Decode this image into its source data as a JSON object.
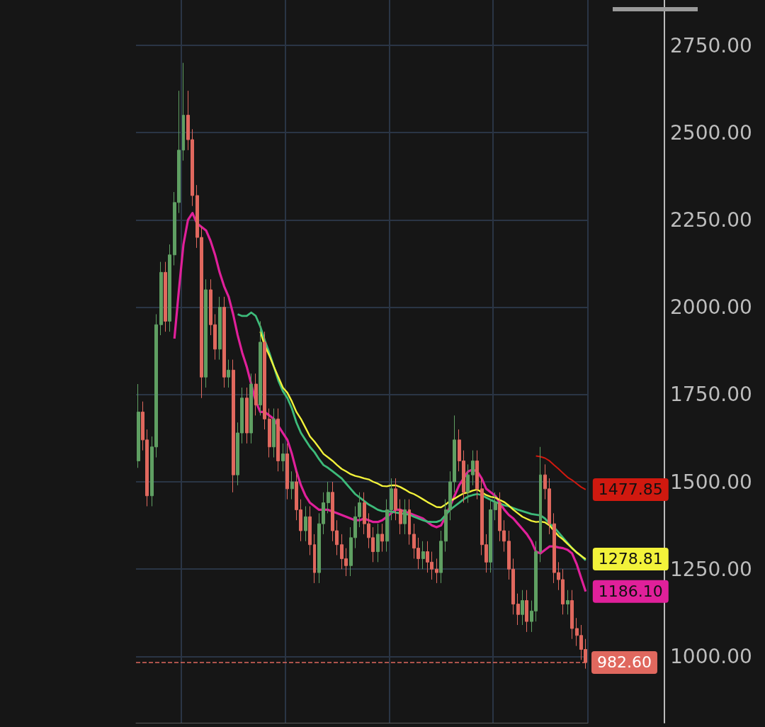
{
  "chart_data": {
    "type": "candlestick",
    "categories": [
      null,
      null,
      null,
      null,
      null,
      null,
      null,
      null,
      null,
      null,
      null,
      null,
      null,
      null,
      null,
      null,
      null,
      null,
      null,
      null,
      null,
      null,
      null,
      null,
      null,
      null,
      null,
      null,
      null,
      null,
      null,
      null,
      null,
      null,
      null,
      null,
      null,
      null,
      null,
      null,
      null,
      null,
      null,
      null,
      null,
      null,
      null,
      null,
      null,
      null,
      null,
      null,
      null,
      null,
      null,
      null,
      null,
      null,
      null,
      null,
      null,
      null,
      null,
      null,
      null,
      null,
      null,
      null,
      null,
      null,
      null,
      null,
      null,
      null,
      null,
      null,
      null,
      null,
      null,
      null,
      null,
      null,
      null,
      null,
      null,
      null,
      null,
      null,
      null,
      null,
      null,
      null,
      null,
      null,
      null,
      null,
      null,
      null,
      null,
      null
    ],
    "ohlc": [
      [
        1560,
        1780,
        1540,
        1700
      ],
      [
        1700,
        1730,
        1590,
        1620
      ],
      [
        1620,
        1650,
        1430,
        1460
      ],
      [
        1460,
        1630,
        1430,
        1600
      ],
      [
        1600,
        1980,
        1570,
        1950
      ],
      [
        1950,
        2130,
        1920,
        2100
      ],
      [
        2100,
        2130,
        1930,
        1960
      ],
      [
        1960,
        2180,
        1930,
        2150
      ],
      [
        2150,
        2330,
        2120,
        2300
      ],
      [
        2300,
        2620,
        2270,
        2450
      ],
      [
        2450,
        2700,
        2420,
        2550
      ],
      [
        2550,
        2620,
        2450,
        2480
      ],
      [
        2480,
        2510,
        2290,
        2320
      ],
      [
        2320,
        2350,
        2170,
        2200
      ],
      [
        2200,
        2230,
        1740,
        1800
      ],
      [
        1800,
        2080,
        1770,
        2050
      ],
      [
        2050,
        2080,
        1920,
        1950
      ],
      [
        1950,
        1980,
        1850,
        1880
      ],
      [
        1880,
        2030,
        1850,
        2000
      ],
      [
        2000,
        2030,
        1770,
        1800
      ],
      [
        1800,
        1850,
        1770,
        1820
      ],
      [
        1820,
        1850,
        1470,
        1520
      ],
      [
        1520,
        1670,
        1490,
        1640
      ],
      [
        1640,
        1770,
        1610,
        1740
      ],
      [
        1740,
        1770,
        1610,
        1640
      ],
      [
        1640,
        1810,
        1610,
        1780
      ],
      [
        1780,
        1810,
        1690,
        1720
      ],
      [
        1720,
        1960,
        1690,
        1900
      ],
      [
        1900,
        1930,
        1650,
        1680
      ],
      [
        1680,
        1710,
        1570,
        1600
      ],
      [
        1600,
        1710,
        1570,
        1680
      ],
      [
        1680,
        1710,
        1530,
        1560
      ],
      [
        1560,
        1610,
        1530,
        1580
      ],
      [
        1580,
        1610,
        1450,
        1480
      ],
      [
        1480,
        1530,
        1450,
        1500
      ],
      [
        1500,
        1530,
        1390,
        1420
      ],
      [
        1420,
        1450,
        1330,
        1360
      ],
      [
        1360,
        1430,
        1330,
        1400
      ],
      [
        1400,
        1430,
        1290,
        1320
      ],
      [
        1320,
        1350,
        1210,
        1240
      ],
      [
        1240,
        1410,
        1210,
        1380
      ],
      [
        1380,
        1470,
        1350,
        1440
      ],
      [
        1440,
        1500,
        1410,
        1470
      ],
      [
        1470,
        1500,
        1330,
        1360
      ],
      [
        1360,
        1390,
        1290,
        1320
      ],
      [
        1320,
        1350,
        1250,
        1280
      ],
      [
        1280,
        1310,
        1230,
        1260
      ],
      [
        1260,
        1370,
        1230,
        1340
      ],
      [
        1340,
        1430,
        1310,
        1400
      ],
      [
        1400,
        1470,
        1370,
        1440
      ],
      [
        1440,
        1470,
        1350,
        1380
      ],
      [
        1380,
        1410,
        1310,
        1340
      ],
      [
        1340,
        1370,
        1270,
        1300
      ],
      [
        1300,
        1380,
        1270,
        1350
      ],
      [
        1350,
        1380,
        1300,
        1330
      ],
      [
        1330,
        1450,
        1300,
        1420
      ],
      [
        1420,
        1510,
        1390,
        1480
      ],
      [
        1480,
        1510,
        1390,
        1420
      ],
      [
        1420,
        1450,
        1350,
        1380
      ],
      [
        1380,
        1450,
        1350,
        1420
      ],
      [
        1420,
        1450,
        1320,
        1350
      ],
      [
        1350,
        1380,
        1280,
        1310
      ],
      [
        1310,
        1340,
        1250,
        1280
      ],
      [
        1280,
        1330,
        1250,
        1300
      ],
      [
        1300,
        1330,
        1240,
        1270
      ],
      [
        1270,
        1300,
        1220,
        1250
      ],
      [
        1250,
        1280,
        1210,
        1240
      ],
      [
        1240,
        1360,
        1210,
        1330
      ],
      [
        1330,
        1450,
        1300,
        1420
      ],
      [
        1420,
        1530,
        1390,
        1500
      ],
      [
        1500,
        1690,
        1470,
        1620
      ],
      [
        1620,
        1650,
        1530,
        1560
      ],
      [
        1560,
        1590,
        1440,
        1470
      ],
      [
        1470,
        1550,
        1440,
        1520
      ],
      [
        1520,
        1590,
        1490,
        1560
      ],
      [
        1560,
        1590,
        1450,
        1480
      ],
      [
        1480,
        1510,
        1290,
        1320
      ],
      [
        1320,
        1350,
        1240,
        1270
      ],
      [
        1270,
        1450,
        1240,
        1420
      ],
      [
        1420,
        1470,
        1390,
        1440
      ],
      [
        1440,
        1470,
        1330,
        1360
      ],
      [
        1360,
        1390,
        1300,
        1330
      ],
      [
        1330,
        1360,
        1220,
        1250
      ],
      [
        1250,
        1280,
        1120,
        1150
      ],
      [
        1150,
        1180,
        1090,
        1120
      ],
      [
        1120,
        1190,
        1090,
        1160
      ],
      [
        1160,
        1190,
        1070,
        1100
      ],
      [
        1100,
        1160,
        1070,
        1130
      ],
      [
        1130,
        1330,
        1100,
        1300
      ],
      [
        1300,
        1600,
        1270,
        1520
      ],
      [
        1520,
        1550,
        1450,
        1480
      ],
      [
        1480,
        1510,
        1350,
        1380
      ],
      [
        1380,
        1410,
        1210,
        1240
      ],
      [
        1240,
        1270,
        1190,
        1220
      ],
      [
        1220,
        1250,
        1120,
        1150
      ],
      [
        1150,
        1190,
        1120,
        1160
      ],
      [
        1160,
        1190,
        1050,
        1080
      ],
      [
        1080,
        1110,
        1030,
        1060
      ],
      [
        1060,
        1090,
        990,
        1020
      ],
      [
        1020,
        1050,
        965,
        982.6
      ]
    ],
    "series": [
      {
        "type": "line",
        "color": "#e0209a",
        "values": [
          null,
          null,
          null,
          null,
          null,
          null,
          null,
          null,
          1910,
          2050,
          2180,
          2250,
          2270,
          2240,
          2230,
          2220,
          2190,
          2150,
          2100,
          2060,
          2030,
          1980,
          1920,
          1870,
          1830,
          1780,
          1730,
          1700,
          1700,
          1690,
          1680,
          1660,
          1640,
          1620,
          1580,
          1530,
          1490,
          1460,
          1440,
          1430,
          1420,
          1420,
          1420,
          1415,
          1410,
          1405,
          1400,
          1395,
          1390,
          1390,
          1395,
          1390,
          1385,
          1385,
          1390,
          1400,
          1410,
          1420,
          1420,
          1415,
          1410,
          1405,
          1400,
          1395,
          1385,
          1375,
          1370,
          1375,
          1400,
          1430,
          1460,
          1490,
          1510,
          1530,
          1535,
          1530,
          1510,
          1480,
          1470,
          1460,
          1440,
          1420,
          1405,
          1395,
          1380,
          1365,
          1350,
          1330,
          1300,
          1295,
          1305,
          1315,
          1315,
          1312,
          1310,
          1305,
          1295,
          1265,
          1225,
          1186.1
        ],
        "value_labels": [
          null,
          null,
          null,
          null,
          null,
          null,
          null,
          null,
          null,
          null,
          null,
          null,
          null,
          null,
          null,
          null,
          null,
          null,
          null,
          null,
          null,
          null,
          null,
          null,
          null,
          null,
          null,
          null,
          null,
          null,
          null,
          null,
          null,
          null,
          null,
          null,
          null,
          null,
          null,
          null,
          null,
          null,
          null,
          null,
          null,
          null,
          null,
          null,
          null,
          null,
          null,
          null,
          null,
          null,
          null,
          null,
          null,
          null,
          null,
          null,
          null,
          null,
          null,
          null,
          null,
          null,
          null,
          null,
          null,
          null,
          null,
          null,
          null,
          null,
          null,
          null,
          null,
          null,
          null,
          null,
          null,
          null,
          null,
          null,
          null,
          null,
          null,
          null,
          null,
          null,
          null,
          null,
          null,
          null,
          null,
          null,
          null,
          null,
          null,
          "1186.10"
        ]
      },
      {
        "type": "line",
        "color": "#3dbb7a",
        "values": [
          null,
          null,
          null,
          null,
          null,
          null,
          null,
          null,
          null,
          null,
          null,
          null,
          null,
          null,
          null,
          null,
          null,
          null,
          null,
          null,
          null,
          null,
          1980,
          1975,
          1975,
          1985,
          1975,
          1945,
          1905,
          1870,
          1830,
          1790,
          1760,
          1740,
          1710,
          1670,
          1640,
          1620,
          1600,
          1585,
          1565,
          1548,
          1540,
          1530,
          1520,
          1510,
          1495,
          1480,
          1465,
          1455,
          1445,
          1435,
          1428,
          1420,
          1416,
          1415,
          1415,
          1412,
          1410,
          1408,
          1406,
          1400,
          1395,
          1390,
          1386,
          1385,
          1385,
          1390,
          1405,
          1420,
          1430,
          1440,
          1450,
          1458,
          1462,
          1465,
          1462,
          1455,
          1448,
          1442,
          1438,
          1433,
          1430,
          1425,
          1420,
          1416,
          1412,
          1408,
          1406,
          1404,
          1395,
          1380,
          1370,
          1355,
          1340,
          1325,
          1310,
          1298,
          1288,
          1275
        ]
      },
      {
        "type": "line",
        "color": "#f2f23a",
        "values": [
          null,
          null,
          null,
          null,
          null,
          null,
          null,
          null,
          null,
          null,
          null,
          null,
          null,
          null,
          null,
          null,
          null,
          null,
          null,
          null,
          null,
          null,
          null,
          null,
          null,
          null,
          null,
          1930,
          1890,
          1862,
          1830,
          1800,
          1770,
          1755,
          1730,
          1700,
          1680,
          1655,
          1630,
          1615,
          1598,
          1580,
          1570,
          1560,
          1548,
          1537,
          1530,
          1522,
          1517,
          1514,
          1510,
          1507,
          1500,
          1495,
          1488,
          1487,
          1490,
          1490,
          1485,
          1478,
          1470,
          1465,
          1458,
          1450,
          1442,
          1435,
          1428,
          1427,
          1435,
          1445,
          1452,
          1460,
          1467,
          1470,
          1475,
          1478,
          1470,
          1462,
          1457,
          1455,
          1448,
          1442,
          1432,
          1420,
          1410,
          1400,
          1394,
          1388,
          1385,
          1386,
          1384,
          1375,
          1360,
          1345,
          1335,
          1322,
          1310,
          1298,
          1288,
          1278.81
        ],
        "value_labels": [
          null,
          null,
          null,
          null,
          null,
          null,
          null,
          null,
          null,
          null,
          null,
          null,
          null,
          null,
          null,
          null,
          null,
          null,
          null,
          null,
          null,
          null,
          null,
          null,
          null,
          null,
          null,
          null,
          null,
          null,
          null,
          null,
          null,
          null,
          null,
          null,
          null,
          null,
          null,
          null,
          null,
          null,
          null,
          null,
          null,
          null,
          null,
          null,
          null,
          null,
          null,
          null,
          null,
          null,
          null,
          null,
          null,
          null,
          null,
          null,
          null,
          null,
          null,
          null,
          null,
          null,
          null,
          null,
          null,
          null,
          null,
          null,
          null,
          null,
          null,
          null,
          null,
          null,
          null,
          null,
          null,
          null,
          null,
          null,
          null,
          null,
          null,
          null,
          null,
          null,
          null,
          null,
          null,
          null,
          null,
          null,
          null,
          null,
          null,
          "1278.81"
        ]
      },
      {
        "type": "line",
        "color": "#d0190f",
        "values": [
          null,
          null,
          null,
          null,
          null,
          null,
          null,
          null,
          null,
          null,
          null,
          null,
          null,
          null,
          null,
          null,
          null,
          null,
          null,
          null,
          null,
          null,
          null,
          null,
          null,
          null,
          null,
          null,
          null,
          null,
          null,
          null,
          null,
          null,
          null,
          null,
          null,
          null,
          null,
          null,
          null,
          null,
          null,
          null,
          null,
          null,
          null,
          null,
          null,
          null,
          null,
          null,
          null,
          null,
          null,
          null,
          null,
          null,
          null,
          null,
          null,
          null,
          null,
          null,
          null,
          null,
          null,
          null,
          null,
          null,
          null,
          null,
          null,
          null,
          null,
          null,
          null,
          null,
          null,
          null,
          null,
          null,
          null,
          null,
          null,
          null,
          null,
          null,
          1574,
          1572,
          1568,
          1560,
          1548,
          1537,
          1525,
          1513,
          1505,
          1495,
          1485,
          1477.85
        ],
        "value_labels": [
          null,
          null,
          null,
          null,
          null,
          null,
          null,
          null,
          null,
          null,
          null,
          null,
          null,
          null,
          null,
          null,
          null,
          null,
          null,
          null,
          null,
          null,
          null,
          null,
          null,
          null,
          null,
          null,
          null,
          null,
          null,
          null,
          null,
          null,
          null,
          null,
          null,
          null,
          null,
          null,
          null,
          null,
          null,
          null,
          null,
          null,
          null,
          null,
          null,
          null,
          null,
          null,
          null,
          null,
          null,
          null,
          null,
          null,
          null,
          null,
          null,
          null,
          null,
          null,
          null,
          null,
          null,
          null,
          null,
          null,
          null,
          null,
          null,
          null,
          null,
          null,
          null,
          null,
          null,
          null,
          null,
          null,
          null,
          null,
          null,
          null,
          null,
          null,
          null,
          null,
          null,
          null,
          null,
          null,
          null,
          null,
          null,
          null,
          null,
          "1477.85"
        ]
      }
    ],
    "ylim": [
      810,
      2880
    ],
    "yticks": [
      {
        "value": 1000,
        "label": "1000.00"
      },
      {
        "value": 1250,
        "label": "1250.00"
      },
      {
        "value": 1500,
        "label": "1500.00"
      },
      {
        "value": 1750,
        "label": "1750.00"
      },
      {
        "value": 2000,
        "label": "2000.00"
      },
      {
        "value": 2250,
        "label": "2250.00"
      },
      {
        "value": 2500,
        "label": "2500.00"
      },
      {
        "value": 2750,
        "label": "2750.00"
      }
    ],
    "ref_lines": [
      {
        "axis": "y",
        "value": 982.6,
        "label": "982.60",
        "color": "#e0685e",
        "line_style": "dashed"
      }
    ],
    "grid": true,
    "marker": "none",
    "tick_labels": "y"
  }
}
